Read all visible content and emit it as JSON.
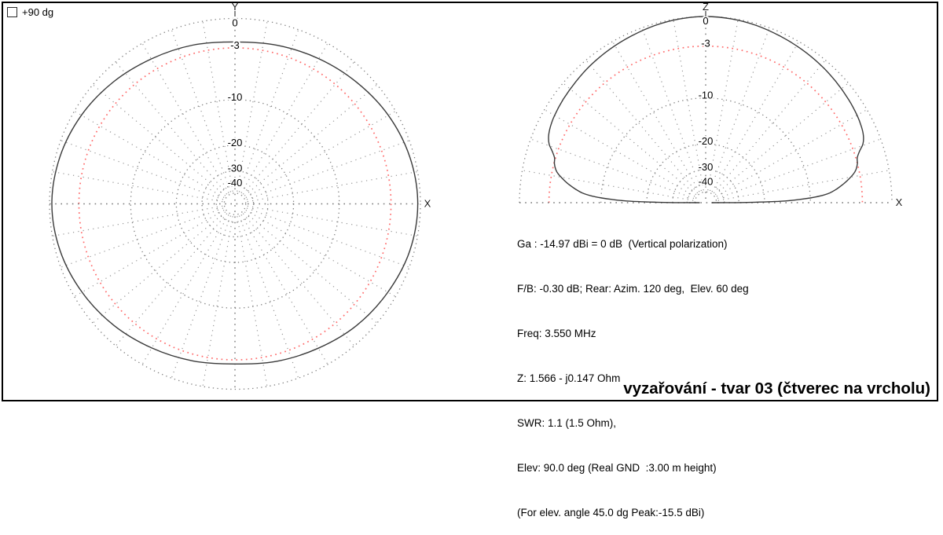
{
  "controls": {
    "plus90_checkbox_label": "+90 dg",
    "plus90_checked": false
  },
  "info_panel": {
    "lines": [
      "Ga : -14.97 dBi = 0 dB  (Vertical polarization)",
      "F/B: -0.30 dB; Rear: Azim. 120 deg,  Elev. 60 deg",
      "Freq: 3.550 MHz",
      "Z: 1.566 - j0.147 Ohm",
      "SWR: 1.1 (1.5 Ohm),",
      "Elev: 90.0 deg (Real GND  :3.00 m height)",
      "(For elev. angle 45.0 dg Peak:-15.5 dBi)"
    ]
  },
  "footer": {
    "title": "vyzařování - tvar 03 (čtverec na vrcholu)"
  },
  "colors": {
    "grid_gray": "#7e7e7e",
    "radial_gray": "#949494",
    "red_ring": "#ff6a6a",
    "curve": "#3a3a3a",
    "text": "#000000",
    "frame": "#000000"
  },
  "chart_data": [
    {
      "type": "polar",
      "name": "azimuth-pattern-plot",
      "plane": "azimuth (X-Y)",
      "axis_labels": {
        "top": "Y",
        "right": "X"
      },
      "rings_db": [
        0,
        -3,
        -10,
        -20,
        -30,
        -40
      ],
      "ring_labels": [
        "0",
        "-3",
        "-10",
        "-20",
        "-30",
        "-40"
      ],
      "red_ring_db": -3,
      "radial_step_deg": 10,
      "scale_note": "radius = R * 10^(dB/40); outer ring 0 dB = -14.97 dBi",
      "series": [
        {
          "name": "total-gain-azimuth",
          "points_deg_db": [
            [
              0,
              -2.35
            ],
            [
              15,
              -2.12
            ],
            [
              30,
              -1.75
            ],
            [
              45,
              -1.3
            ],
            [
              60,
              -0.8
            ],
            [
              75,
              -0.42
            ],
            [
              90,
              -0.25
            ],
            [
              105,
              -0.42
            ],
            [
              120,
              -0.85
            ],
            [
              135,
              -1.3
            ],
            [
              150,
              -1.85
            ],
            [
              165,
              -2.25
            ],
            [
              180,
              -2.55
            ],
            [
              195,
              -2.28
            ],
            [
              210,
              -1.88
            ],
            [
              225,
              -1.35
            ],
            [
              240,
              -0.85
            ],
            [
              255,
              -0.42
            ],
            [
              270,
              -0.22
            ],
            [
              285,
              -0.4
            ],
            [
              300,
              -0.78
            ],
            [
              315,
              -1.28
            ],
            [
              330,
              -1.78
            ],
            [
              345,
              -2.1
            ]
          ]
        }
      ]
    },
    {
      "type": "polar-half",
      "name": "elevation-pattern-plot",
      "plane": "elevation (Z-X)",
      "axis_labels": {
        "top": "Z",
        "right": "X"
      },
      "rings_db": [
        0,
        -3,
        -10,
        -20,
        -30,
        -40
      ],
      "ring_labels": [
        "0",
        "-3",
        "-10",
        "-20",
        "-30",
        "-40"
      ],
      "red_ring_db": -3,
      "radial_step_deg": 10,
      "scale_note": "radius = R * 10^(dB/40); outer ring 0 dB = -14.97 dBi; max at zenith (Elev 90 deg)",
      "series": [
        {
          "name": "total-gain-elevation",
          "points_deg_db": [
            [
              0,
              -60
            ],
            [
              0.2,
              -31
            ],
            [
              0.5,
              -23
            ],
            [
              0.9,
              -17.5
            ],
            [
              1.4,
              -14
            ],
            [
              2,
              -11.8
            ],
            [
              2.6,
              -10
            ],
            [
              3.3,
              -8.5
            ],
            [
              4.5,
              -7.0
            ],
            [
              6,
              -6.0
            ],
            [
              7.5,
              -5.2
            ],
            [
              9,
              -4.5
            ],
            [
              11,
              -3.7
            ],
            [
              12.5,
              -3.3
            ],
            [
              14.5,
              -3.0
            ],
            [
              16.5,
              -2.85
            ],
            [
              18.5,
              -2.4
            ],
            [
              20.5,
              -1.8
            ],
            [
              23,
              -1.45
            ],
            [
              26,
              -1.25
            ],
            [
              30,
              -1.1
            ],
            [
              36,
              -0.95
            ],
            [
              43,
              -0.8
            ],
            [
              50,
              -0.65
            ],
            [
              58,
              -0.5
            ],
            [
              66,
              -0.35
            ],
            [
              74,
              -0.18
            ],
            [
              82,
              -0.06
            ],
            [
              90,
              0
            ],
            [
              98,
              -0.06
            ],
            [
              106,
              -0.18
            ],
            [
              114,
              -0.35
            ],
            [
              122,
              -0.5
            ],
            [
              130,
              -0.66
            ],
            [
              137,
              -0.83
            ],
            [
              144,
              -0.98
            ],
            [
              150,
              -1.13
            ],
            [
              154,
              -1.3
            ],
            [
              157,
              -1.52
            ],
            [
              159.5,
              -1.88
            ],
            [
              161.5,
              -2.45
            ],
            [
              163.5,
              -2.9
            ],
            [
              165.5,
              -3.05
            ],
            [
              167.5,
              -3.35
            ],
            [
              169,
              -3.75
            ],
            [
              171,
              -4.55
            ],
            [
              172.5,
              -5.25
            ],
            [
              174,
              -6.1
            ],
            [
              175.5,
              -7.1
            ],
            [
              176.7,
              -8.6
            ],
            [
              177.4,
              -10.1
            ],
            [
              178,
              -11.9
            ],
            [
              178.6,
              -14.1
            ],
            [
              179.1,
              -17.6
            ],
            [
              179.5,
              -23
            ],
            [
              179.8,
              -31
            ],
            [
              180,
              -60
            ]
          ]
        }
      ]
    }
  ]
}
